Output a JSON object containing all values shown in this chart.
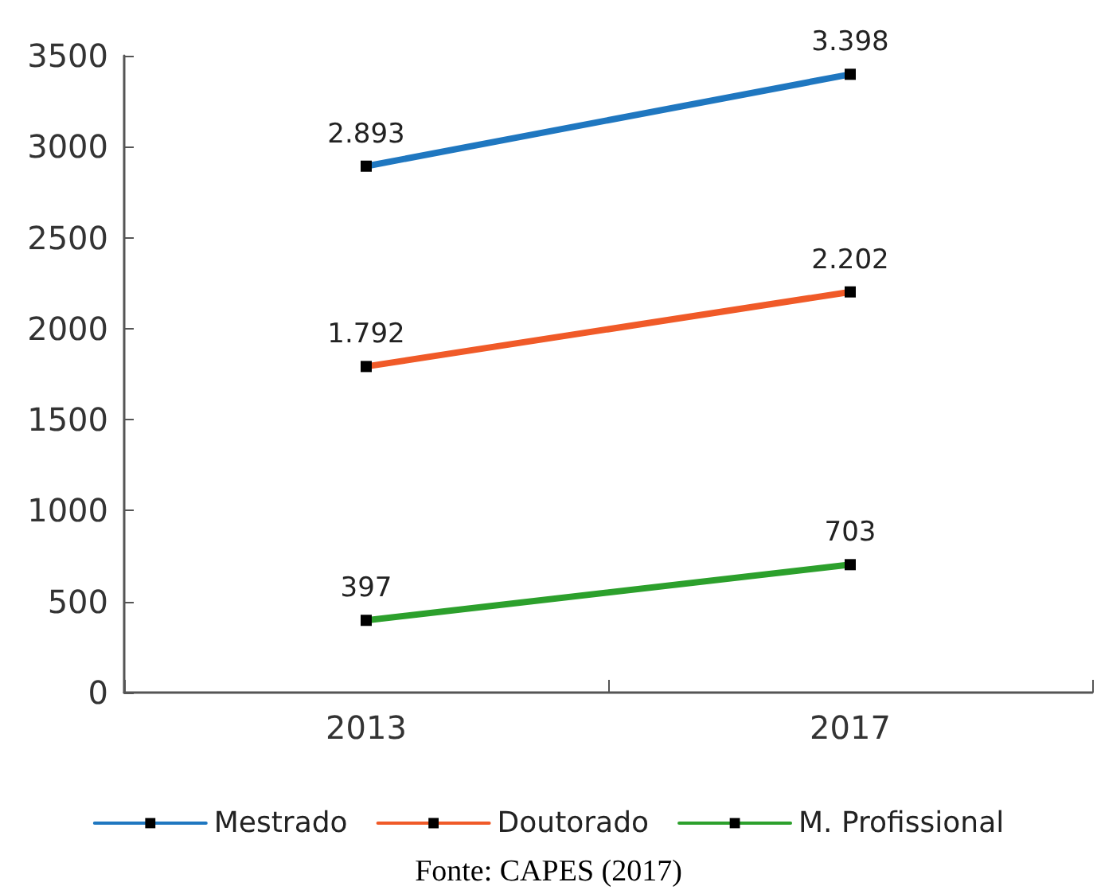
{
  "chart_data": {
    "type": "line",
    "categories": [
      "2013",
      "2017"
    ],
    "series": [
      {
        "name": "Mestrado",
        "color": "#1f77c0",
        "values": [
          2893,
          3398
        ],
        "value_labels": [
          "2.893",
          "3.398"
        ]
      },
      {
        "name": "Doutorado",
        "color": "#f05a28",
        "values": [
          1792,
          2202
        ],
        "value_labels": [
          "1.792",
          "2.202"
        ]
      },
      {
        "name": "M. Profissional",
        "color": "#2ca02c",
        "values": [
          397,
          703
        ],
        "value_labels": [
          "397",
          "703"
        ]
      }
    ],
    "ylim": [
      0,
      3500
    ],
    "yticks": [
      0,
      500,
      1000,
      1500,
      2000,
      2500,
      3000,
      3500
    ],
    "grid": false,
    "legend": "bottom",
    "marker": "square",
    "line_style": "solid",
    "annotations": [
      "Fonte: CAPES (2017)"
    ]
  }
}
